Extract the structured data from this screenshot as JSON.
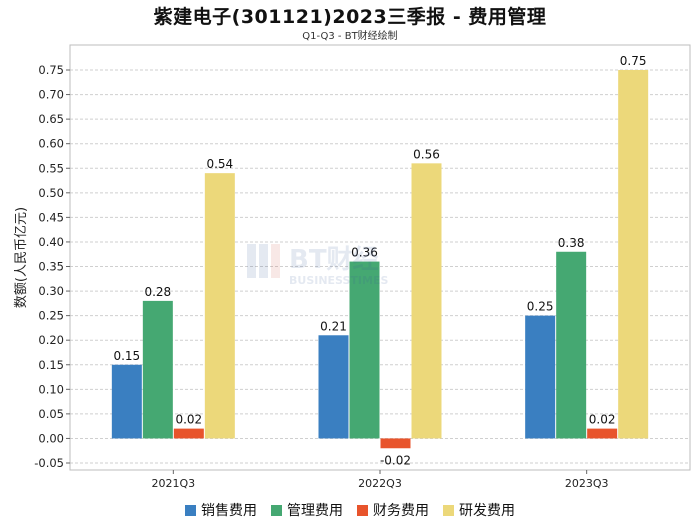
{
  "title": "紫建电子(301121)2023三季报 - 费用管理",
  "subtitle": "Q1-Q3 - BT财经绘制",
  "watermark": {
    "brand": "BT财经",
    "sub": "BUSINESSTIMES"
  },
  "chart_data": {
    "type": "bar",
    "categories": [
      "2021Q3",
      "2022Q3",
      "2023Q3"
    ],
    "series": [
      {
        "name": "销售费用",
        "color": "#3a7fc1",
        "values": [
          0.15,
          0.21,
          0.25
        ]
      },
      {
        "name": "管理费用",
        "color": "#45a872",
        "values": [
          0.28,
          0.36,
          0.38
        ]
      },
      {
        "name": "财务费用",
        "color": "#e8542c",
        "values": [
          0.02,
          -0.02,
          0.02
        ]
      },
      {
        "name": "研发费用",
        "color": "#ecd87a",
        "values": [
          0.54,
          0.56,
          0.75
        ]
      }
    ],
    "ylabel": "数额(人民币亿元)",
    "ylim": [
      -0.05,
      0.75
    ],
    "yticks": [
      "-0.05",
      "0.00",
      "0.05",
      "0.10",
      "0.15",
      "0.20",
      "0.25",
      "0.30",
      "0.35",
      "0.40",
      "0.45",
      "0.50",
      "0.55",
      "0.60",
      "0.65",
      "0.70",
      "0.75"
    ],
    "grid": true,
    "legend_position": "bottom"
  }
}
